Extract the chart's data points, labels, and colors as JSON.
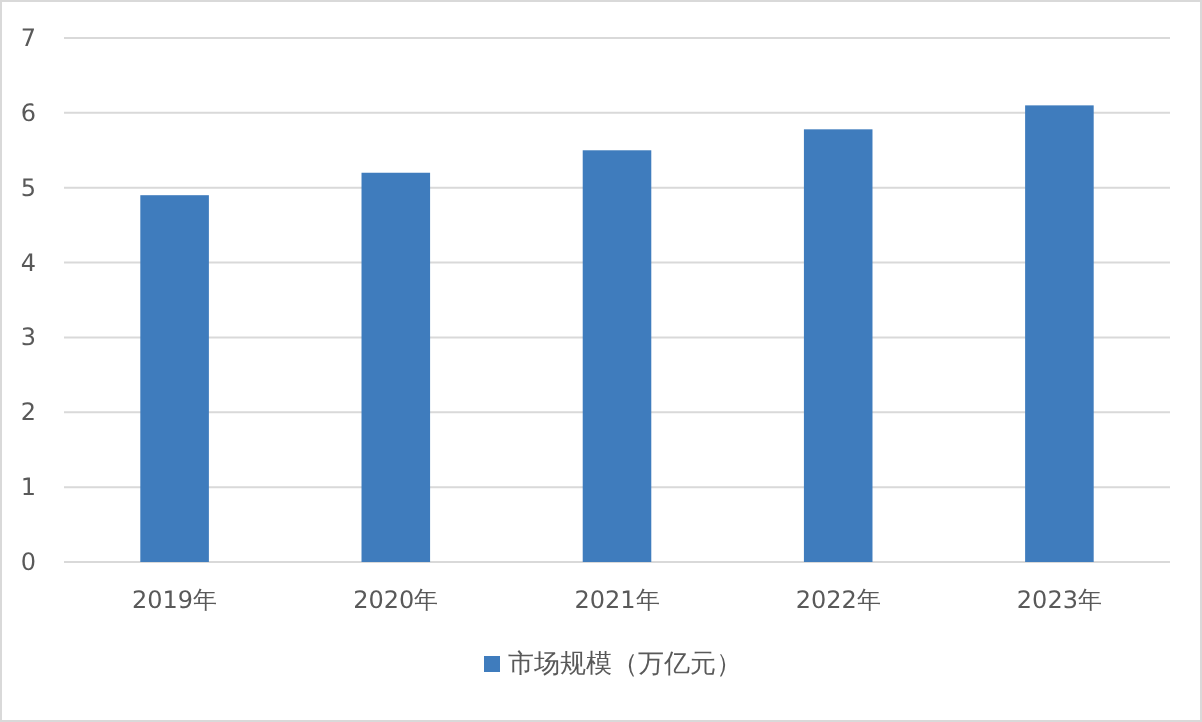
{
  "chart_data": {
    "type": "bar",
    "categories": [
      "2019年",
      "2020年",
      "2021年",
      "2022年",
      "2023年"
    ],
    "series": [
      {
        "name": "市场规模（万亿元）",
        "color": "#3f7cbd",
        "values": [
          4.9,
          5.2,
          5.5,
          5.78,
          6.1
        ]
      }
    ],
    "ylim": [
      0,
      7
    ],
    "yticks": [
      0,
      1,
      2,
      3,
      4,
      5,
      6,
      7
    ],
    "grid": "y",
    "legend": "bottom"
  }
}
